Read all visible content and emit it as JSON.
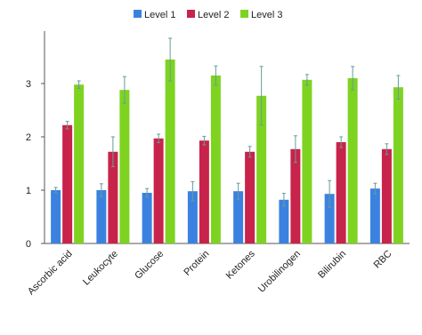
{
  "chart_data": {
    "type": "bar",
    "categories": [
      "Ascorbic acid",
      "Leukocyte",
      "Glucose",
      "Protein",
      "Ketones",
      "Urobilinogen",
      "Bilirubin",
      "RBC"
    ],
    "series": [
      {
        "name": "Level 1",
        "color": "#3b82e0",
        "values": [
          1.0,
          1.0,
          0.95,
          0.98,
          0.98,
          0.82,
          0.93,
          1.03
        ],
        "errors": [
          0.05,
          0.12,
          0.08,
          0.18,
          0.15,
          0.12,
          0.25,
          0.1
        ]
      },
      {
        "name": "Level 2",
        "color": "#c8234a",
        "values": [
          2.22,
          1.72,
          1.97,
          1.93,
          1.72,
          1.77,
          1.9,
          1.77
        ],
        "errors": [
          0.07,
          0.28,
          0.08,
          0.08,
          0.1,
          0.25,
          0.1,
          0.1
        ]
      },
      {
        "name": "Level 3",
        "color": "#7ed321",
        "values": [
          2.98,
          2.88,
          3.45,
          3.15,
          2.77,
          3.07,
          3.1,
          2.93
        ],
        "errors": [
          0.07,
          0.25,
          0.4,
          0.18,
          0.55,
          0.1,
          0.22,
          0.22
        ]
      }
    ],
    "yticks": [
      0,
      1,
      2,
      3
    ],
    "ylim": [
      0,
      3.9
    ],
    "grid": false,
    "legend": "top-center"
  }
}
